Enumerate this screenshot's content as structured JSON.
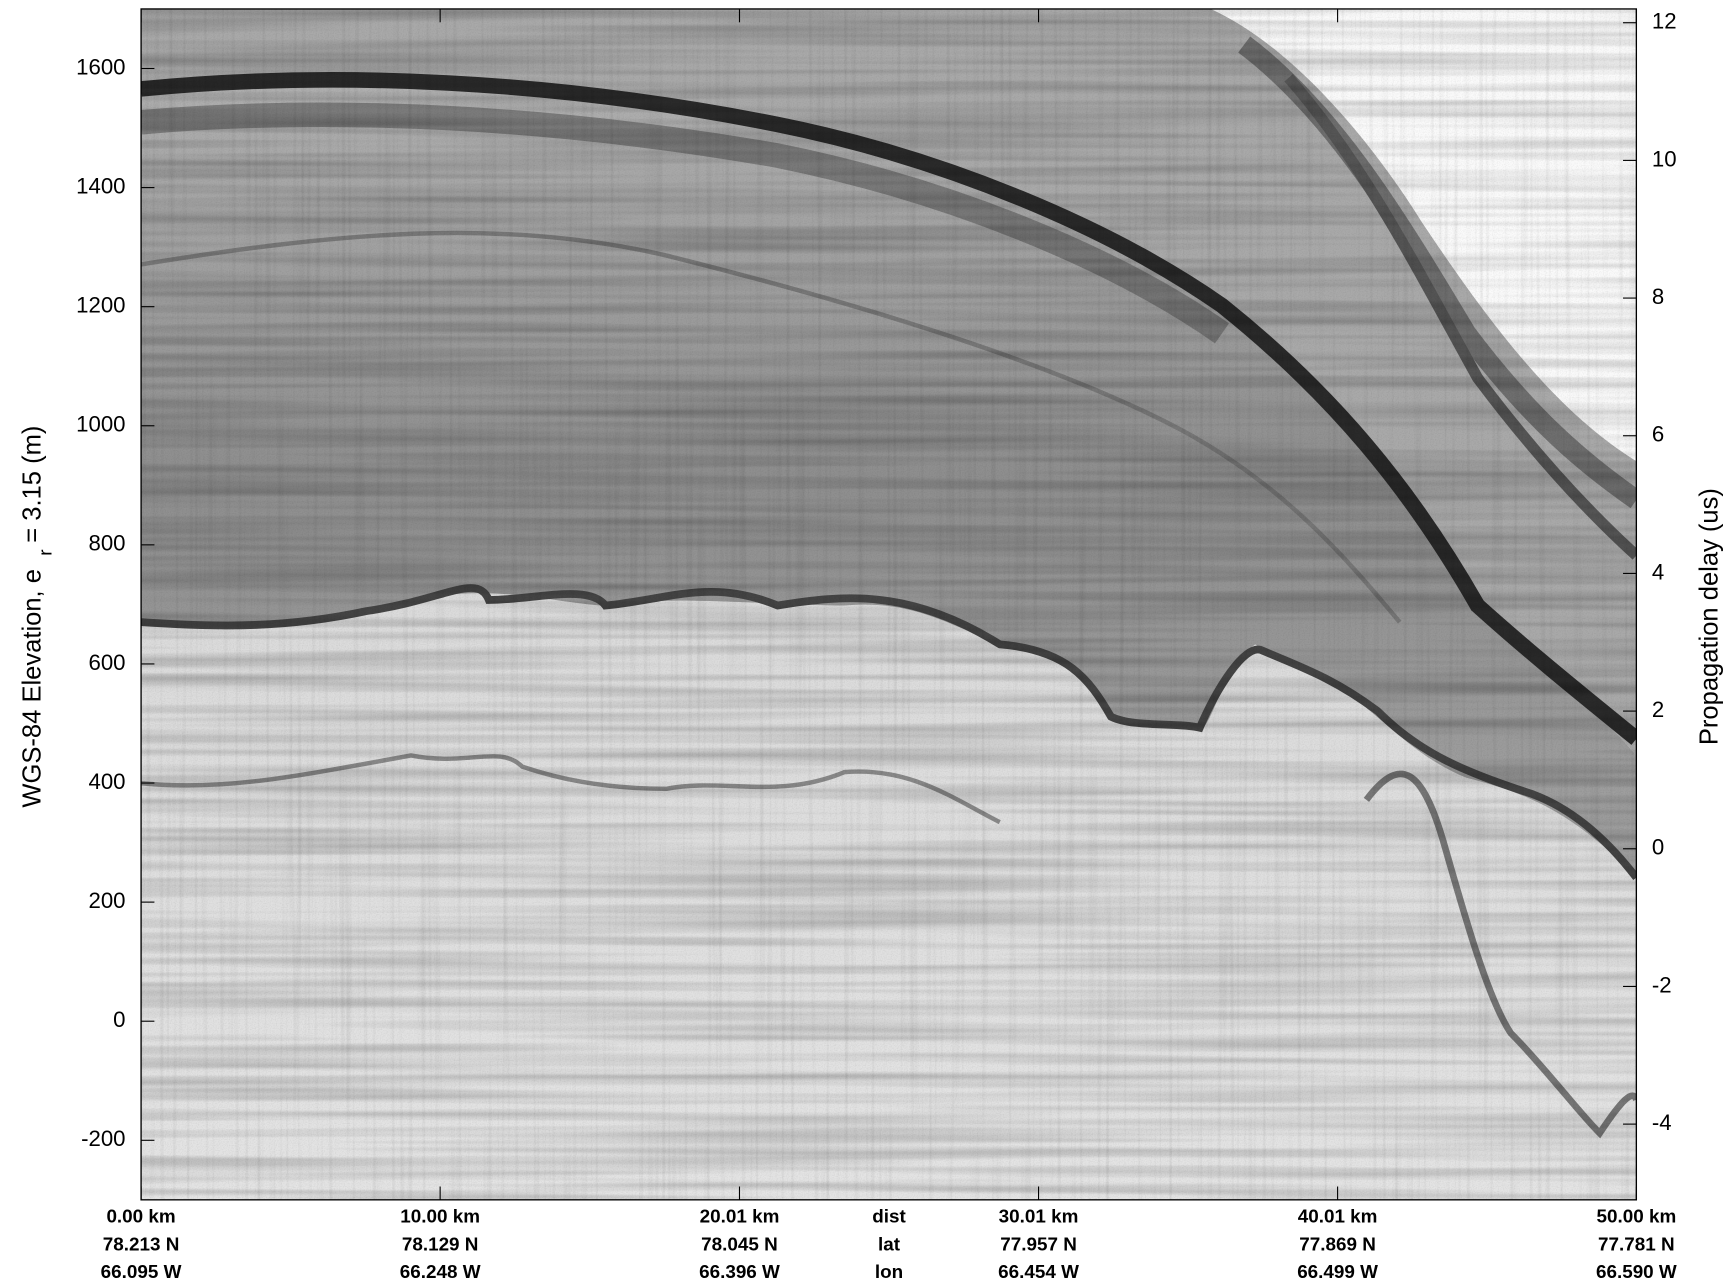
{
  "chart_data": {
    "type": "radargram",
    "ylabel": "WGS-84 Elevation, e",
    "ylabel_subscript": "r",
    "ylabel_suffix": "= 3.15 (m)",
    "y2label": "Propagation delay (us)",
    "xlim": [
      0,
      50
    ],
    "xticks": [
      {
        "value": 0,
        "label": "0.00 km"
      },
      {
        "value": 10,
        "label": "10.00 km"
      },
      {
        "value": 20.01,
        "label": "20.01 km"
      },
      {
        "value": 30.01,
        "label": "30.01 km"
      },
      {
        "value": 40.01,
        "label": "40.01 km"
      },
      {
        "value": 50,
        "label": "50.00 km"
      }
    ],
    "lat": [
      "78.213 N",
      "78.129 N",
      "78.045 N",
      "77.957 N",
      "77.869 N",
      "77.781 N"
    ],
    "lon": [
      "66.095 W",
      "66.248 W",
      "66.396 W",
      "66.454 W",
      "66.499 W",
      "66.590 W"
    ],
    "row_labels": [
      "dist",
      "lat",
      "lon"
    ],
    "ylim": [
      -300,
      1700
    ],
    "yticks": [
      -200,
      0,
      200,
      400,
      600,
      800,
      1000,
      1200,
      1400,
      1600
    ],
    "y2lim": [
      -5.1,
      12.2
    ],
    "y2ticks": [
      -4,
      -2,
      0,
      2,
      4,
      6,
      8,
      10,
      12
    ]
  }
}
